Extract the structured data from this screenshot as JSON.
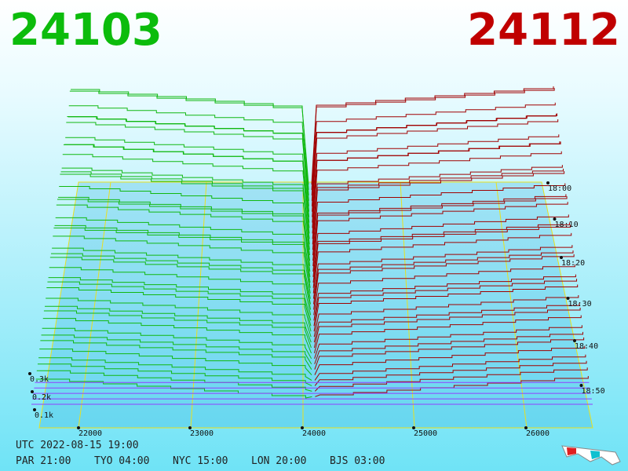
{
  "header": {
    "bid": "24103",
    "ask": "24112"
  },
  "price_axis": [
    "22000",
    "23000",
    "24000",
    "25000",
    "26000"
  ],
  "volume_axis": [
    "0.3k",
    "0.2k",
    "0.1k"
  ],
  "time_axis": [
    "18:00",
    "18:10",
    "18:20",
    "18:30",
    "18:40",
    "18:50"
  ],
  "footer": {
    "utc": "UTC 2022-08-15 19:00",
    "clocks": [
      "PAR 21:00",
      "TYO 04:00",
      "NYC 15:00",
      "LON 20:00",
      "BJS 03:00"
    ]
  }
}
